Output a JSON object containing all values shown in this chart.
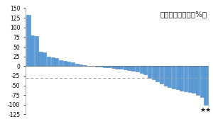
{
  "title": "肿瘤最佳变化率（%）",
  "values": [
    133,
    80,
    78,
    37,
    35,
    24,
    22,
    20,
    15,
    13,
    11,
    9,
    6,
    4,
    2,
    1,
    0,
    -1,
    -2,
    -3,
    -4,
    -5,
    -6,
    -7,
    -8,
    -10,
    -12,
    -15,
    -18,
    -22,
    -30,
    -35,
    -40,
    -45,
    -50,
    -55,
    -58,
    -60,
    -63,
    -65,
    -68,
    -70,
    -75,
    -80,
    -100
  ],
  "bar_color": "#5B9BD5",
  "bar_edge_color": "#4A86C8",
  "ref_line_y": -30,
  "ref_line_color": "#A0A0A0",
  "ylim": [
    -125,
    150
  ],
  "yticks": [
    -125,
    -100,
    -75,
    -50,
    -25,
    0,
    25,
    50,
    75,
    100,
    125,
    150
  ],
  "ytick_labels": [
    "-125",
    "-100",
    "-75",
    "-50",
    "-25",
    "0",
    "25",
    "50",
    "75",
    "100",
    "125",
    "150"
  ],
  "bg_color": "#FFFFFF",
  "title_fontsize": 7.5,
  "tick_fontsize": 5.5,
  "star_annotation": "★★",
  "annotation_fontsize": 6.5
}
